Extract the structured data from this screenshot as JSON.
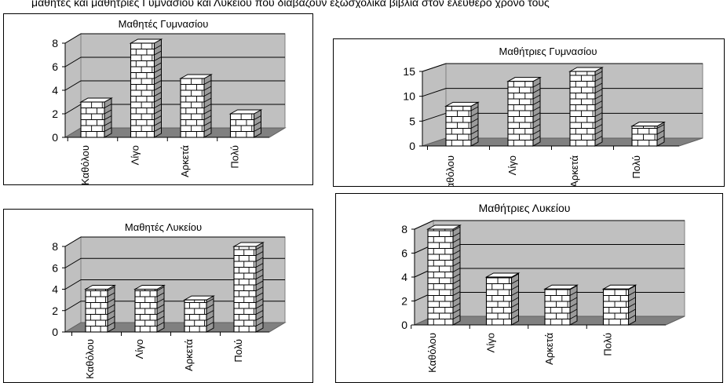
{
  "header": {
    "text": "μαθητές και μαθήτριες Γυμνασίου και Λυκείου που διαβάζουν εξωσχολικά βιβλία στον ελεύθερο χρόνο τους"
  },
  "chart_data": [
    {
      "type": "bar",
      "title": "Μαθητές Γυμνασίου",
      "categories": [
        "Καθόλου",
        "Λίγο",
        "Αρκετά",
        "Πολύ"
      ],
      "values": [
        3,
        8,
        5,
        2
      ],
      "yticks": [
        "0",
        "2",
        "4",
        "6",
        "8"
      ],
      "ylim": [
        0,
        8
      ],
      "grid": true,
      "style": "3d-brick"
    },
    {
      "type": "bar",
      "title": "Μαθήτριες Γυμνασίου",
      "categories": [
        "Καθόλου",
        "Λίγο",
        "Αρκετά",
        "Πολύ"
      ],
      "values": [
        8,
        13,
        15,
        4
      ],
      "yticks": [
        "0",
        "5",
        "10",
        "15"
      ],
      "ylim": [
        0,
        15
      ],
      "grid": true,
      "style": "3d-brick"
    },
    {
      "type": "bar",
      "title": "Μαθητές Λυκείου",
      "categories": [
        "Καθόλου",
        "Λίγο",
        "Αρκετά",
        "Πολύ"
      ],
      "values": [
        4,
        4,
        3,
        8
      ],
      "yticks": [
        "0",
        "2",
        "4",
        "6",
        "8"
      ],
      "ylim": [
        0,
        8
      ],
      "grid": true,
      "style": "3d-brick"
    },
    {
      "type": "bar",
      "title": "Μαθήτριες Λυκείου",
      "categories": [
        "Καθόλου",
        "Λίγο",
        "Αρκετά",
        "Πολύ"
      ],
      "values": [
        8,
        4,
        3,
        3
      ],
      "yticks": [
        "0",
        "2",
        "4",
        "6",
        "8"
      ],
      "ylim": [
        0,
        8
      ],
      "grid": true,
      "style": "3d-brick"
    }
  ]
}
